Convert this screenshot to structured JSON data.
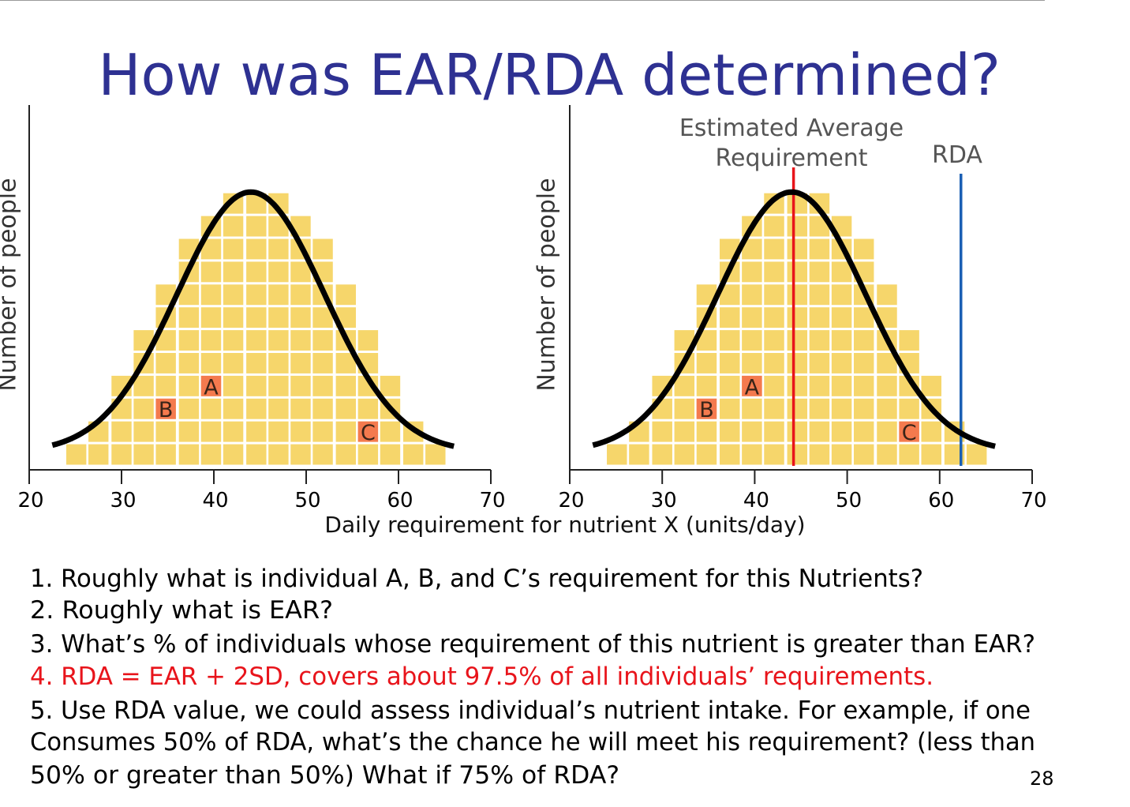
{
  "slide": {
    "title": "How was EAR/RDA determined?",
    "page_number": "28",
    "x_axis_label": "Daily requirement for nutrient X (units/day)",
    "questions": [
      {
        "text": "1.  Roughly what is individual A, B, and C’s requirement for this Nutrients?",
        "color": "#000000"
      },
      {
        "text": "2.  Roughly what is EAR?",
        "color": "#000000"
      },
      {
        "text": "3.  What’s % of individuals whose requirement of this nutrient is greater than EAR?",
        "color": "#000000"
      },
      {
        "text": "4.  RDA = EAR + 2SD, covers about 97.5% of all individuals’ requirements.",
        "color": "#e8141b"
      },
      {
        "text": "5.  Use RDA value, we could assess individual’s nutrient intake. For example, if one",
        "color": "#000000"
      },
      {
        "text": "Consumes 50% of RDA, what’s the chance he will meet his requirement? (less than",
        "color": "#000000"
      },
      {
        "text": "50% or greater than 50%) What if 75% of RDA?",
        "color": "#000000"
      }
    ]
  },
  "colors": {
    "title": "#2e3192",
    "cell": "#f6d66b",
    "marker": "#f47a4e",
    "curve": "#000000",
    "ear_line": "#e8141b",
    "rda_line": "#1a5fb4"
  },
  "chart_data": [
    {
      "type": "bar",
      "ylabel": "Number of people",
      "xlim": [
        20,
        70
      ],
      "xticks": [
        "20",
        "30",
        "40",
        "50",
        "60",
        "70"
      ],
      "bin_width": 2.43,
      "bin_centers": [
        25.1,
        27.5,
        30.0,
        32.4,
        34.8,
        37.3,
        39.7,
        42.1,
        44.6,
        47.0,
        49.4,
        51.8,
        54.3,
        56.7,
        59.1,
        61.6,
        64.0
      ],
      "counts": [
        1,
        2,
        4,
        6,
        8,
        10,
        11,
        12,
        12,
        12,
        11,
        10,
        8,
        6,
        4,
        2,
        1
      ],
      "curve": {
        "type": "normal",
        "mean": 44,
        "sd": 8,
        "peak_count": 12,
        "x_range": [
          22.5,
          66
        ]
      },
      "individuals": [
        {
          "label": "A",
          "x": 39.7,
          "row": 4
        },
        {
          "label": "B",
          "x": 34.8,
          "row": 3
        },
        {
          "label": "C",
          "x": 56.7,
          "row": 2
        }
      ]
    },
    {
      "type": "bar",
      "ylabel": "Number of people",
      "xlim": [
        20,
        70
      ],
      "xticks": [
        "20",
        "30",
        "40",
        "50",
        "60",
        "70"
      ],
      "bin_width": 2.43,
      "bin_centers": [
        25.1,
        27.5,
        30.0,
        32.4,
        34.8,
        37.3,
        39.7,
        42.1,
        44.6,
        47.0,
        49.4,
        51.8,
        54.3,
        56.7,
        59.1,
        61.6,
        64.0
      ],
      "counts": [
        1,
        2,
        4,
        6,
        8,
        10,
        11,
        12,
        12,
        12,
        11,
        10,
        8,
        6,
        4,
        2,
        1
      ],
      "curve": {
        "type": "normal",
        "mean": 44,
        "sd": 8,
        "peak_count": 12,
        "x_range": [
          22.5,
          66
        ]
      },
      "individuals": [
        {
          "label": "A",
          "x": 39.7,
          "row": 4
        },
        {
          "label": "B",
          "x": 34.8,
          "row": 3
        },
        {
          "label": "C",
          "x": 56.7,
          "row": 2
        }
      ],
      "reference_lines": [
        {
          "label": "Estimated  Average Requirement",
          "label_lines": [
            "Estimated  Average",
            "Requirement"
          ],
          "x": 44.2
        },
        {
          "label": "RDA",
          "x": 62.3
        }
      ]
    }
  ]
}
